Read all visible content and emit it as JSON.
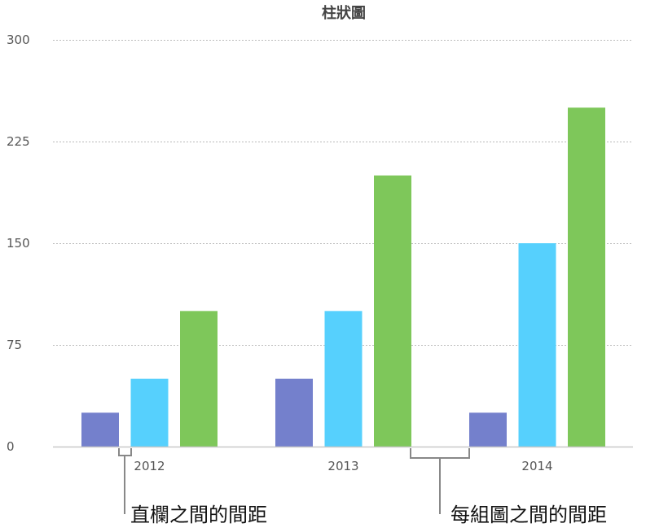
{
  "chart_data": {
    "type": "bar",
    "title": "柱狀圖",
    "categories": [
      "2012",
      "2013",
      "2014"
    ],
    "series": [
      {
        "values": [
          25,
          50,
          25
        ],
        "color": "#7480cc"
      },
      {
        "values": [
          50,
          100,
          150
        ],
        "color": "#56d0fd"
      },
      {
        "values": [
          100,
          200,
          250
        ],
        "color": "#7ec75a"
      }
    ],
    "yticks": [
      "0",
      "75",
      "150",
      "225",
      "300"
    ],
    "ylim": [
      0,
      300
    ],
    "grid": true,
    "gridlines": "dotted horizontal",
    "legend": "none"
  },
  "annotations": {
    "column_spacing": "直欄之間的間距",
    "group_spacing": "每組圖之間的間距"
  }
}
